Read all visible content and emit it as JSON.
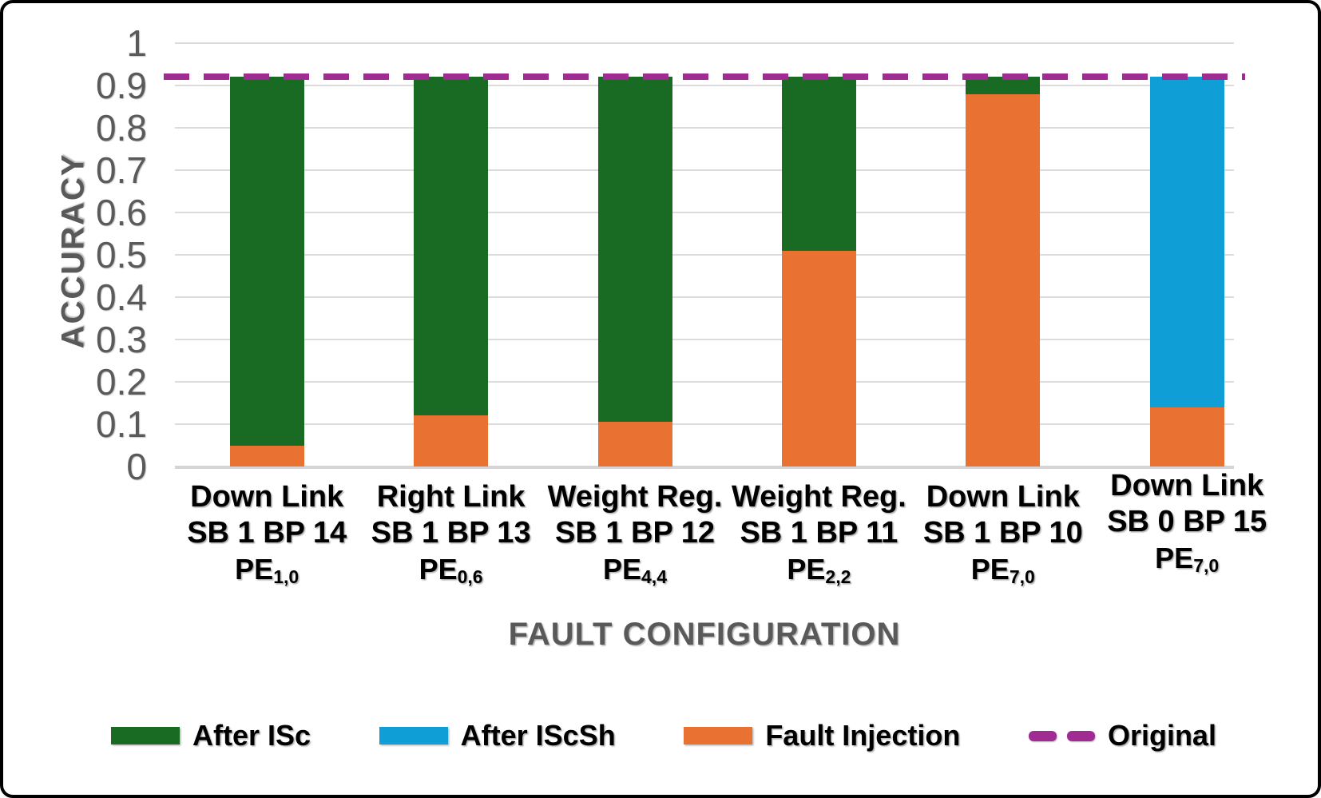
{
  "chart_data": {
    "type": "bar",
    "stacked": true,
    "title": "",
    "xlabel": "FAULT CONFIGURATION",
    "ylabel": "ACCURACY",
    "ylim": [
      0,
      1
    ],
    "grid": true,
    "legend_position": "bottom",
    "yticks": [
      "1",
      "0.9",
      "0.8",
      "0.7",
      "0.6",
      "0.5",
      "0.4",
      "0.3",
      "0.2",
      "0.1",
      "0"
    ],
    "categories": [
      {
        "line1": "Down Link",
        "line2": "SB 1 BP 14",
        "pe": "PE",
        "pe_sub": "1,0"
      },
      {
        "line1": "Right Link",
        "line2": "SB 1 BP 13",
        "pe": "PE",
        "pe_sub": "0,6"
      },
      {
        "line1": "Weight Reg.",
        "line2": "SB 1 BP 12",
        "pe": "PE",
        "pe_sub": "4,4"
      },
      {
        "line1": "Weight Reg.",
        "line2": "SB 1 BP 11",
        "pe": "PE",
        "pe_sub": "2,2"
      },
      {
        "line1": "Down Link",
        "line2": "SB 1 BP 10",
        "pe": "PE",
        "pe_sub": "7,0"
      },
      {
        "line1": "Down Link",
        "line2": "SB 0 BP 15",
        "pe": "PE",
        "pe_sub": "7,0"
      }
    ],
    "series": [
      {
        "name": "After ISc",
        "color": "#196B24",
        "values": [
          0.87,
          0.8,
          0.815,
          0.41,
          0.04,
          0
        ]
      },
      {
        "name": "After IScSh",
        "color": "#0F9ED5",
        "values": [
          0,
          0,
          0,
          0,
          0,
          0.78
        ]
      },
      {
        "name": "Fault Injection",
        "color": "#E97132",
        "values": [
          0.05,
          0.12,
          0.105,
          0.51,
          0.88,
          0.14
        ]
      }
    ],
    "stack_order": [
      "Fault Injection",
      "After ISc",
      "After IScSh"
    ],
    "stack_totals": [
      0.92,
      0.92,
      0.92,
      0.92,
      0.92,
      0.92
    ],
    "reference_line": {
      "name": "Original",
      "value": 0.92,
      "color": "#A02B93",
      "style": "dashed"
    },
    "legend": [
      {
        "label": "After ISc",
        "swatch": "rect",
        "color": "#196B24"
      },
      {
        "label": "After IScSh",
        "swatch": "rect",
        "color": "#0F9ED5"
      },
      {
        "label": "Fault Injection",
        "swatch": "rect",
        "color": "#E97132"
      },
      {
        "label": "Original",
        "swatch": "dashes",
        "color": "#A02B93"
      }
    ],
    "colors": {
      "gridline": "#DCDCDC",
      "axis_text": "#595959",
      "category_text": "#000000",
      "frame_border": "#000000"
    }
  }
}
